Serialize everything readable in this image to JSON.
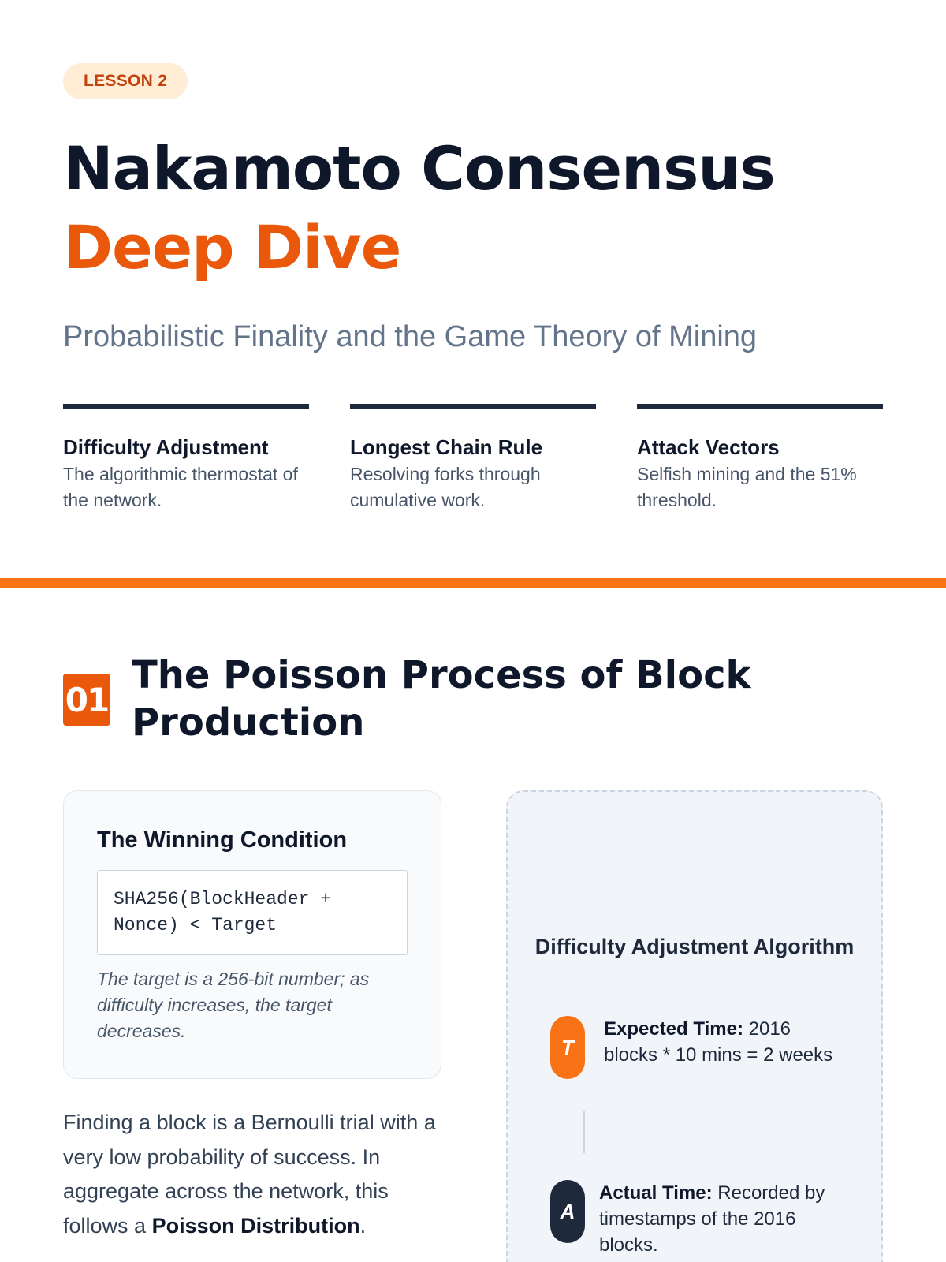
{
  "hero": {
    "badge": "LESSON 2",
    "title_line1": "Nakamoto Consensus",
    "title_line2": "Deep Dive",
    "subtitle": "Probabilistic Finality and the Game Theory of Mining"
  },
  "features": [
    {
      "title": "Difficulty Adjustment",
      "desc": "The algorithmic thermostat of the network."
    },
    {
      "title": "Longest Chain Rule",
      "desc": "Resolving forks through cumulative work."
    },
    {
      "title": "Attack Vectors",
      "desc": "Selfish mining and the 51% threshold."
    }
  ],
  "section1": {
    "number": "01",
    "title": "The Poisson Process of Block Production",
    "card": {
      "title": "The Winning Condition",
      "code": "SHA256(BlockHeader + Nonce) < Target",
      "note": "The target is a 256-bit number; as difficulty increases, the target decreases."
    },
    "paragraph": {
      "text": "Finding a block is a Bernoulli trial with a very low probability of success. In aggregate across the network, this follows a ",
      "bold": "Poisson Distribution",
      "end": "."
    },
    "panel": {
      "title": "Difficulty Adjustment Algorithm",
      "steps": [
        {
          "icon": "T",
          "label": "Expected Time:",
          "text": " 2016 blocks * 10 mins = 2 weeks",
          "color": "#f97316"
        },
        {
          "icon": "A",
          "label": "Actual Time:",
          "text": " Recorded by timestamps of the 2016 blocks.",
          "color": "#1e293b"
        }
      ]
    }
  },
  "colors": {
    "accent": "#ea580c",
    "dark": "#0f172a",
    "divider": "#f97316"
  }
}
